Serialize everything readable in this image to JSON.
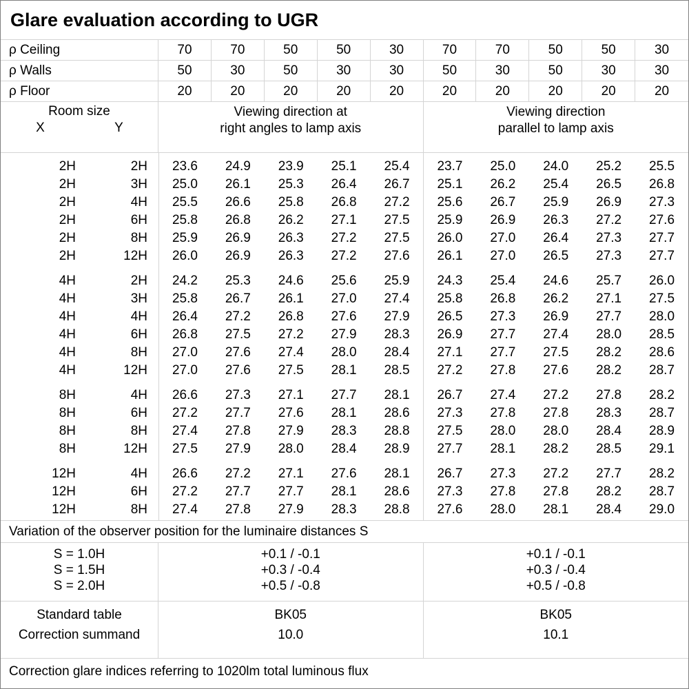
{
  "title": "Glare evaluation according to UGR",
  "colors": {
    "grid_line": "#d4d4d4",
    "outer_border": "#7f7f7f",
    "text": "#000000",
    "background": "#ffffff"
  },
  "reflectance": {
    "rows": [
      {
        "label": "ρ Ceiling",
        "values": [
          "70",
          "70",
          "50",
          "50",
          "30",
          "70",
          "70",
          "50",
          "50",
          "30"
        ]
      },
      {
        "label": "ρ Walls",
        "values": [
          "50",
          "30",
          "50",
          "30",
          "30",
          "50",
          "30",
          "50",
          "30",
          "30"
        ]
      },
      {
        "label": "ρ Floor",
        "values": [
          "20",
          "20",
          "20",
          "20",
          "20",
          "20",
          "20",
          "20",
          "20",
          "20"
        ]
      }
    ]
  },
  "header": {
    "room_size_label": "Room size",
    "x_label": "X",
    "y_label": "Y",
    "group_right_angles": [
      "Viewing direction at",
      "right angles to lamp axis"
    ],
    "group_parallel": [
      "Viewing direction",
      "parallel to lamp axis"
    ]
  },
  "ugr_table": {
    "blocks": [
      [
        {
          "x": "2H",
          "y": "2H",
          "values": [
            "23.6",
            "24.9",
            "23.9",
            "25.1",
            "25.4",
            "23.7",
            "25.0",
            "24.0",
            "25.2",
            "25.5"
          ]
        },
        {
          "x": "2H",
          "y": "3H",
          "values": [
            "25.0",
            "26.1",
            "25.3",
            "26.4",
            "26.7",
            "25.1",
            "26.2",
            "25.4",
            "26.5",
            "26.8"
          ]
        },
        {
          "x": "2H",
          "y": "4H",
          "values": [
            "25.5",
            "26.6",
            "25.8",
            "26.8",
            "27.2",
            "25.6",
            "26.7",
            "25.9",
            "26.9",
            "27.3"
          ]
        },
        {
          "x": "2H",
          "y": "6H",
          "values": [
            "25.8",
            "26.8",
            "26.2",
            "27.1",
            "27.5",
            "25.9",
            "26.9",
            "26.3",
            "27.2",
            "27.6"
          ]
        },
        {
          "x": "2H",
          "y": "8H",
          "values": [
            "25.9",
            "26.9",
            "26.3",
            "27.2",
            "27.5",
            "26.0",
            "27.0",
            "26.4",
            "27.3",
            "27.7"
          ]
        },
        {
          "x": "2H",
          "y": "12H",
          "values": [
            "26.0",
            "26.9",
            "26.3",
            "27.2",
            "27.6",
            "26.1",
            "27.0",
            "26.5",
            "27.3",
            "27.7"
          ]
        }
      ],
      [
        {
          "x": "4H",
          "y": "2H",
          "values": [
            "24.2",
            "25.3",
            "24.6",
            "25.6",
            "25.9",
            "24.3",
            "25.4",
            "24.6",
            "25.7",
            "26.0"
          ]
        },
        {
          "x": "4H",
          "y": "3H",
          "values": [
            "25.8",
            "26.7",
            "26.1",
            "27.0",
            "27.4",
            "25.8",
            "26.8",
            "26.2",
            "27.1",
            "27.5"
          ]
        },
        {
          "x": "4H",
          "y": "4H",
          "values": [
            "26.4",
            "27.2",
            "26.8",
            "27.6",
            "27.9",
            "26.5",
            "27.3",
            "26.9",
            "27.7",
            "28.0"
          ]
        },
        {
          "x": "4H",
          "y": "6H",
          "values": [
            "26.8",
            "27.5",
            "27.2",
            "27.9",
            "28.3",
            "26.9",
            "27.7",
            "27.4",
            "28.0",
            "28.5"
          ]
        },
        {
          "x": "4H",
          "y": "8H",
          "values": [
            "27.0",
            "27.6",
            "27.4",
            "28.0",
            "28.4",
            "27.1",
            "27.7",
            "27.5",
            "28.2",
            "28.6"
          ]
        },
        {
          "x": "4H",
          "y": "12H",
          "values": [
            "27.0",
            "27.6",
            "27.5",
            "28.1",
            "28.5",
            "27.2",
            "27.8",
            "27.6",
            "28.2",
            "28.7"
          ]
        }
      ],
      [
        {
          "x": "8H",
          "y": "4H",
          "values": [
            "26.6",
            "27.3",
            "27.1",
            "27.7",
            "28.1",
            "26.7",
            "27.4",
            "27.2",
            "27.8",
            "28.2"
          ]
        },
        {
          "x": "8H",
          "y": "6H",
          "values": [
            "27.2",
            "27.7",
            "27.6",
            "28.1",
            "28.6",
            "27.3",
            "27.8",
            "27.8",
            "28.3",
            "28.7"
          ]
        },
        {
          "x": "8H",
          "y": "8H",
          "values": [
            "27.4",
            "27.8",
            "27.9",
            "28.3",
            "28.8",
            "27.5",
            "28.0",
            "28.0",
            "28.4",
            "28.9"
          ]
        },
        {
          "x": "8H",
          "y": "12H",
          "values": [
            "27.5",
            "27.9",
            "28.0",
            "28.4",
            "28.9",
            "27.7",
            "28.1",
            "28.2",
            "28.5",
            "29.1"
          ]
        }
      ],
      [
        {
          "x": "12H",
          "y": "4H",
          "values": [
            "26.6",
            "27.2",
            "27.1",
            "27.6",
            "28.1",
            "26.7",
            "27.3",
            "27.2",
            "27.7",
            "28.2"
          ]
        },
        {
          "x": "12H",
          "y": "6H",
          "values": [
            "27.2",
            "27.7",
            "27.7",
            "28.1",
            "28.6",
            "27.3",
            "27.8",
            "27.8",
            "28.2",
            "28.7"
          ]
        },
        {
          "x": "12H",
          "y": "8H",
          "values": [
            "27.4",
            "27.8",
            "27.9",
            "28.3",
            "28.8",
            "27.6",
            "28.0",
            "28.1",
            "28.4",
            "29.0"
          ]
        }
      ]
    ]
  },
  "observer_variation": {
    "note": "Variation of the observer position for the luminaire distances S",
    "s_labels": [
      "S = 1.0H",
      "S = 1.5H",
      "S = 2.0H"
    ],
    "right_angles_values": [
      "+0.1 / -0.1",
      "+0.3 / -0.4",
      "+0.5 / -0.8"
    ],
    "parallel_values": [
      "+0.1 / -0.1",
      "+0.3 / -0.4",
      "+0.5 / -0.8"
    ]
  },
  "summary": {
    "row_labels": [
      "Standard table",
      "Correction summand"
    ],
    "right_angles_values": [
      "BK05",
      "10.0"
    ],
    "parallel_values": [
      "BK05",
      "10.1"
    ]
  },
  "footer_note": "Correction glare indices referring to 1020lm total luminous flux"
}
